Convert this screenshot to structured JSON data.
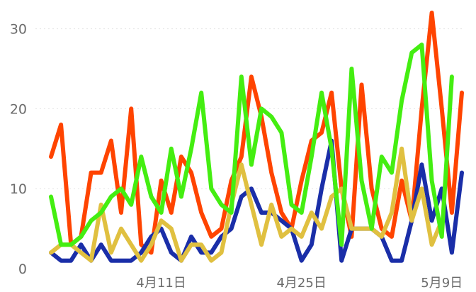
{
  "chart_data": {
    "type": "line",
    "title": "",
    "xlabel": "",
    "ylabel": "",
    "ylim": [
      0,
      32
    ],
    "yticks": [
      "0",
      "10",
      "20",
      "30"
    ],
    "xtick_labels": [
      "4月11日",
      "4月25日",
      "5月9日"
    ],
    "grid": true,
    "legend": "none",
    "series": [
      {
        "color": "#ff4400",
        "values": [
          14,
          18,
          3,
          4,
          12,
          12,
          16,
          7,
          20,
          3,
          2,
          11,
          7,
          14,
          12,
          7,
          4,
          5,
          11,
          14,
          24,
          19,
          12,
          7,
          5,
          11,
          16,
          17,
          22,
          10,
          4,
          23,
          10,
          5,
          4,
          11,
          6,
          20,
          32,
          20,
          7,
          22
        ]
      },
      {
        "color": "#1a2ea8",
        "values": [
          2,
          1,
          1,
          3,
          1,
          3,
          1,
          1,
          1,
          2,
          4,
          5,
          2,
          1,
          4,
          2,
          2,
          4,
          5,
          9,
          10,
          7,
          7,
          6,
          5,
          1,
          3,
          10,
          16,
          1,
          5,
          5,
          5,
          4,
          1,
          1,
          6,
          13,
          6,
          10,
          2,
          12
        ]
      },
      {
        "color": "#44ee11",
        "values": [
          9,
          3,
          3,
          4,
          6,
          7,
          9,
          10,
          8,
          14,
          9,
          7,
          15,
          9,
          15,
          22,
          10,
          8,
          7,
          24,
          13,
          20,
          19,
          17,
          8,
          7,
          14,
          22,
          15,
          3,
          25,
          11,
          5,
          14,
          12,
          21,
          27,
          28,
          11,
          4,
          24
        ]
      },
      {
        "color": "#e0c040",
        "values": [
          2,
          3,
          3,
          2,
          1,
          8,
          2,
          5,
          3,
          1,
          3,
          6,
          5,
          1,
          3,
          3,
          1,
          2,
          8,
          13,
          8,
          3,
          8,
          4,
          5,
          4,
          7,
          5,
          9,
          10,
          5,
          5,
          5,
          4,
          7,
          15,
          6,
          10,
          3,
          6
        ]
      }
    ]
  }
}
